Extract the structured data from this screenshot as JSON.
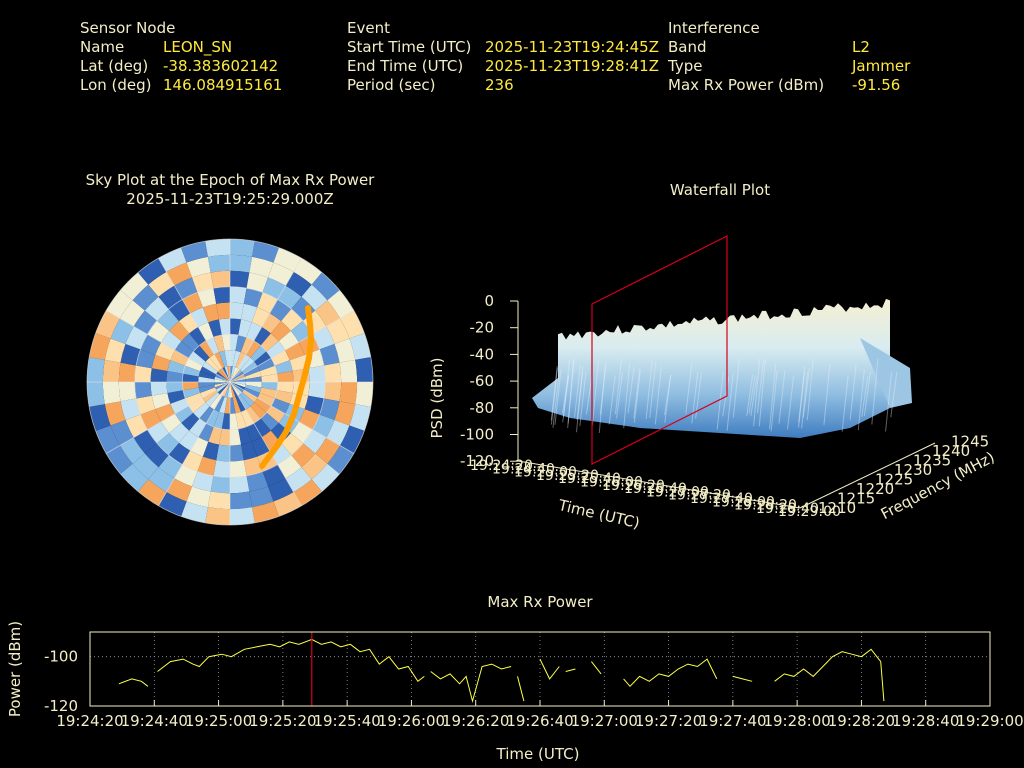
{
  "colors": {
    "background": "#000000",
    "text": "#f3eec6",
    "value": "#ffea3c",
    "track": "#ff9e00",
    "marker": "#d4001a",
    "line": "#ffff46"
  },
  "sensor": {
    "heading": "Sensor Node",
    "name_label": "Name",
    "name": "LEON_SN",
    "lat_label": "Lat (deg)",
    "lat": "-38.383602142",
    "lon_label": "Lon (deg)",
    "lon": "146.084915161"
  },
  "event": {
    "heading": "Event",
    "start_label": "Start Time (UTC)",
    "start": "2025-11-23T19:24:45Z",
    "end_label": "End Time (UTC)",
    "end": "2025-11-23T19:28:41Z",
    "period_label": "Period (sec)",
    "period": "236"
  },
  "interference": {
    "heading": "Interference",
    "band_label": "Band",
    "band": "L2",
    "type_label": "Type",
    "type": "Jammer",
    "power_label": "Max Rx Power (dBm)",
    "power": "-91.56"
  },
  "skyplot": {
    "title_line1": "Sky Plot at the Epoch of Max Rx Power",
    "title_line2": "2025-11-23T19:25:29.000Z"
  },
  "waterfall": {
    "title": "Waterfall Plot",
    "zlabel": "PSD (dBm)",
    "xlabel": "Time (UTC)",
    "ylabel": "Frequency (MHz)",
    "zticks": [
      "0",
      "-20",
      "-40",
      "-60",
      "-80",
      "-100",
      "-120"
    ],
    "fticks": [
      "1210",
      "1215",
      "1220",
      "1225",
      "1230",
      "1235",
      "1240",
      "1245"
    ],
    "tticks": [
      "19:24:20",
      "19:24:40",
      "19:25:00",
      "19:25:20",
      "19:25:40",
      "19:26:00",
      "19:26:20",
      "19:26:40",
      "19:27:00",
      "19:27:20",
      "19:27:40",
      "19:28:00",
      "19:28:20",
      "19:28:40",
      "19:29:00"
    ]
  },
  "chart_data": {
    "type": "line",
    "title": "Max Rx Power",
    "xlabel": "Time (UTC)",
    "ylabel": "Power (dBm)",
    "ylim": [
      -120,
      -90
    ],
    "yticks": [
      -100,
      -120
    ],
    "xticks": [
      "19:24:20",
      "19:24:40",
      "19:25:00",
      "19:25:20",
      "19:25:40",
      "19:26:00",
      "19:26:20",
      "19:26:40",
      "19:27:00",
      "19:27:20",
      "19:27:40",
      "19:28:00",
      "19:28:20",
      "19:28:40",
      "19:29:00"
    ],
    "marker_time": "19:25:29",
    "grid": true,
    "segments": [
      [
        [
          "19:24:29",
          -111
        ],
        [
          "19:24:33",
          -109
        ],
        [
          "19:24:36",
          -110
        ],
        [
          "19:24:38",
          -112
        ]
      ],
      [
        [
          "19:24:41",
          -106
        ],
        [
          "19:24:45",
          -102
        ],
        [
          "19:24:49",
          -101
        ],
        [
          "19:24:52",
          -103
        ],
        [
          "19:24:54",
          -104
        ],
        [
          "19:24:57",
          -100
        ],
        [
          "19:25:01",
          -99
        ],
        [
          "19:25:04",
          -100
        ],
        [
          "19:25:08",
          -97
        ],
        [
          "19:25:12",
          -96
        ],
        [
          "19:25:16",
          -95
        ],
        [
          "19:25:19",
          -96
        ],
        [
          "19:25:22",
          -94
        ],
        [
          "19:25:25",
          -95
        ],
        [
          "19:25:29",
          -93
        ],
        [
          "19:25:32",
          -95
        ],
        [
          "19:25:35",
          -94
        ],
        [
          "19:25:38",
          -96
        ],
        [
          "19:25:41",
          -95
        ],
        [
          "19:25:44",
          -98
        ],
        [
          "19:25:47",
          -97
        ],
        [
          "19:25:50",
          -103
        ],
        [
          "19:25:53",
          -100
        ],
        [
          "19:25:56",
          -105
        ],
        [
          "19:25:59",
          -104
        ],
        [
          "19:26:02",
          -110
        ],
        [
          "19:26:04",
          -108
        ]
      ],
      [
        [
          "19:26:06",
          -106
        ],
        [
          "19:26:09",
          -109
        ],
        [
          "19:26:12",
          -107
        ],
        [
          "19:26:15",
          -111
        ],
        [
          "19:26:17",
          -108
        ],
        [
          "19:26:19",
          -118
        ],
        [
          "19:26:22",
          -104
        ],
        [
          "19:26:25",
          -103
        ],
        [
          "19:26:28",
          -105
        ],
        [
          "19:26:31",
          -104
        ]
      ],
      [
        [
          "19:26:33",
          -108
        ],
        [
          "19:26:35",
          -118
        ]
      ],
      [
        [
          "19:26:40",
          -101
        ],
        [
          "19:26:43",
          -109
        ],
        [
          "19:26:46",
          -104
        ]
      ],
      [
        [
          "19:26:48",
          -106
        ],
        [
          "19:26:51",
          -105
        ]
      ],
      [
        [
          "19:26:56",
          -102
        ],
        [
          "19:26:59",
          -107
        ]
      ],
      [
        [
          "19:27:06",
          -109
        ],
        [
          "19:27:08",
          -112
        ],
        [
          "19:27:11",
          -108
        ],
        [
          "19:27:14",
          -110
        ],
        [
          "19:27:17",
          -107
        ],
        [
          "19:27:20",
          -108
        ],
        [
          "19:27:23",
          -105
        ],
        [
          "19:27:26",
          -103
        ],
        [
          "19:27:29",
          -104
        ],
        [
          "19:27:32",
          -101
        ],
        [
          "19:27:35",
          -109
        ]
      ],
      [
        [
          "19:27:40",
          -108
        ],
        [
          "19:27:43",
          -109
        ],
        [
          "19:27:46",
          -110
        ]
      ],
      [
        [
          "19:27:53",
          -110
        ],
        [
          "19:27:56",
          -107
        ],
        [
          "19:27:59",
          -108
        ],
        [
          "19:28:02",
          -105
        ],
        [
          "19:28:05",
          -108
        ],
        [
          "19:28:08",
          -104
        ],
        [
          "19:28:11",
          -100
        ],
        [
          "19:28:14",
          -98
        ],
        [
          "19:28:17",
          -99
        ],
        [
          "19:28:20",
          -100
        ],
        [
          "19:28:23",
          -97
        ],
        [
          "19:28:26",
          -102
        ],
        [
          "19:28:27",
          -118
        ]
      ]
    ]
  }
}
